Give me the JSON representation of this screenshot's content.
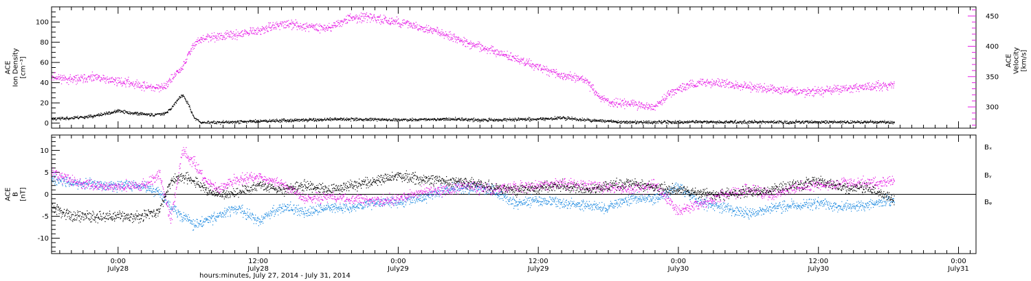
{
  "xaxis": {
    "title": "hours:minutes, July 27, 2014 - July 31, 2014",
    "ticks": [
      {
        "t": 24,
        "time": "0:00",
        "date": "July28"
      },
      {
        "t": 36,
        "time": "12:00",
        "date": "July28"
      },
      {
        "t": 48,
        "time": "0:00",
        "date": "July29"
      },
      {
        "t": 60,
        "time": "12:00",
        "date": "July29"
      },
      {
        "t": 72,
        "time": "0:00",
        "date": "July30"
      },
      {
        "t": 84,
        "time": "12:00",
        "date": "July30"
      },
      {
        "t": 96,
        "time": "0:00",
        "date": "July31"
      }
    ]
  },
  "colors": {
    "density": "#000000",
    "velocity": "#e619e6",
    "bx": "#000000",
    "by": "#1a88e0",
    "bz": "#e619e6"
  },
  "chart_data": [
    {
      "type": "scatter",
      "panel": "top",
      "ylabel_left": [
        "ACE",
        "Ion Density",
        "[cm⁻³]"
      ],
      "ylabel_right": [
        "ACE",
        "Velocity",
        "[km/s]"
      ],
      "xlim": [
        18.3,
        97.5
      ],
      "ylim_left": [
        -5,
        115
      ],
      "yticks_left": [
        "0",
        "20",
        "40",
        "60",
        "80",
        "100"
      ],
      "ylim_right": [
        265,
        465
      ],
      "yticks_right": [
        "300",
        "350",
        "400",
        "450"
      ],
      "series": [
        {
          "axis": "left",
          "color_key": "density",
          "t": [
            18.3,
            20,
            22,
            24,
            25,
            26,
            27,
            28,
            28.5,
            29,
            29.5,
            30,
            30.5,
            31,
            32,
            34,
            36,
            40,
            44,
            48,
            52,
            56,
            60,
            62,
            64,
            66,
            67,
            68,
            70,
            72,
            76,
            80,
            84,
            88,
            90.5
          ],
          "y": [
            4,
            5,
            7,
            12,
            10,
            9,
            8,
            10,
            14,
            22,
            28,
            18,
            5,
            1,
            0.5,
            1,
            2,
            3,
            4,
            3,
            4,
            3,
            4,
            5,
            3,
            2,
            1,
            1,
            1,
            1,
            1,
            1,
            1,
            1,
            0.5
          ]
        },
        {
          "axis": "right",
          "color_key": "velocity",
          "t": [
            18.3,
            20,
            22,
            24,
            25,
            26,
            27,
            27.5,
            28,
            28.5,
            29,
            29.5,
            30,
            30.5,
            31,
            32,
            34,
            36,
            38,
            40,
            42,
            44,
            46,
            48,
            50,
            52,
            54,
            56,
            58,
            60,
            62,
            64,
            65,
            66,
            68,
            70,
            71,
            72,
            74,
            76,
            78,
            80,
            82,
            84,
            86,
            88,
            90,
            90.5
          ],
          "y": [
            350,
            345,
            348,
            342,
            340,
            335,
            332,
            330,
            335,
            345,
            355,
            365,
            385,
            405,
            410,
            415,
            418,
            425,
            437,
            433,
            430,
            448,
            446,
            440,
            430,
            420,
            405,
            392,
            380,
            365,
            352,
            345,
            320,
            308,
            305,
            300,
            318,
            330,
            340,
            338,
            333,
            330,
            325,
            325,
            330,
            333,
            335,
            338
          ]
        }
      ]
    },
    {
      "type": "scatter",
      "panel": "bottom",
      "ylabel_left": [
        "ACE",
        "B",
        "[nT]"
      ],
      "xlim": [
        18.3,
        97.5
      ],
      "ylim": [
        -13.5,
        13.5
      ],
      "yticks": [
        "-10",
        "-5",
        "0",
        "5",
        "10"
      ],
      "zero_line": true,
      "legend": [
        "Bₓ",
        "Bᵧ",
        "Bᵩ"
      ],
      "series": [
        {
          "name": "Bₓ",
          "color_key": "bx",
          "t": [
            18.3,
            20,
            22,
            24,
            26,
            27.5,
            28.5,
            29.5,
            30.5,
            31.5,
            32.5,
            34,
            36,
            38,
            40,
            42,
            44,
            46,
            48,
            50,
            52,
            54,
            56,
            58,
            60,
            62,
            64,
            66,
            68,
            70,
            72,
            74,
            76,
            78,
            80,
            82,
            84,
            86,
            88,
            90.5
          ],
          "y": [
            -3,
            -5,
            -5,
            -5,
            -5,
            -4,
            3,
            4,
            3,
            1,
            0,
            0,
            2,
            1,
            2,
            1,
            2,
            3,
            4,
            3.5,
            3,
            2.5,
            1.5,
            1,
            1.5,
            2,
            1,
            2,
            2.5,
            1.5,
            1,
            0,
            0,
            0.5,
            1,
            2,
            3,
            1.5,
            1.5,
            -1
          ]
        },
        {
          "name": "Bᵧ",
          "color_key": "by",
          "t": [
            18.3,
            20,
            22,
            24,
            26,
            27.5,
            28.5,
            29.5,
            30.5,
            31.5,
            32.5,
            34,
            36,
            38,
            40,
            42,
            44,
            46,
            48,
            50,
            52,
            54,
            56,
            58,
            60,
            62,
            64,
            66,
            68,
            70,
            72,
            74,
            76,
            78,
            80,
            82,
            84,
            86,
            88,
            90.5
          ],
          "y": [
            3.5,
            2.5,
            2,
            2,
            2,
            0.5,
            -3,
            -5,
            -7,
            -6,
            -5,
            -3,
            -6,
            -3,
            -4,
            -3,
            -3,
            -2,
            -2,
            -1,
            1,
            1.5,
            1,
            -2,
            -1.5,
            -2,
            -2.5,
            -3,
            -1,
            -1,
            1.5,
            -2,
            -3,
            -4.5,
            -3,
            -2.5,
            -2,
            -3,
            -2.5,
            -1
          ]
        },
        {
          "name": "Bᵩ",
          "color_key": "bz",
          "t": [
            18.3,
            20,
            22,
            24,
            26,
            27.5,
            28.5,
            29.5,
            30.5,
            31.5,
            32.5,
            34,
            36,
            38,
            40,
            42,
            44,
            46,
            48,
            50,
            52,
            54,
            56,
            58,
            60,
            62,
            64,
            66,
            68,
            70,
            72,
            74,
            76,
            78,
            80,
            82,
            84,
            86,
            88,
            90.5
          ],
          "y": [
            5,
            3,
            2,
            1.5,
            2,
            4.5,
            -6,
            10,
            7,
            3,
            1,
            3,
            4,
            2,
            -1,
            -0.5,
            -1,
            -1.5,
            -1,
            0.5,
            1,
            2,
            1,
            1.5,
            2,
            2.5,
            2,
            1.5,
            1,
            2,
            -4,
            -2,
            0,
            1,
            0,
            1.5,
            2,
            2.5,
            2.5,
            3
          ]
        }
      ]
    }
  ]
}
